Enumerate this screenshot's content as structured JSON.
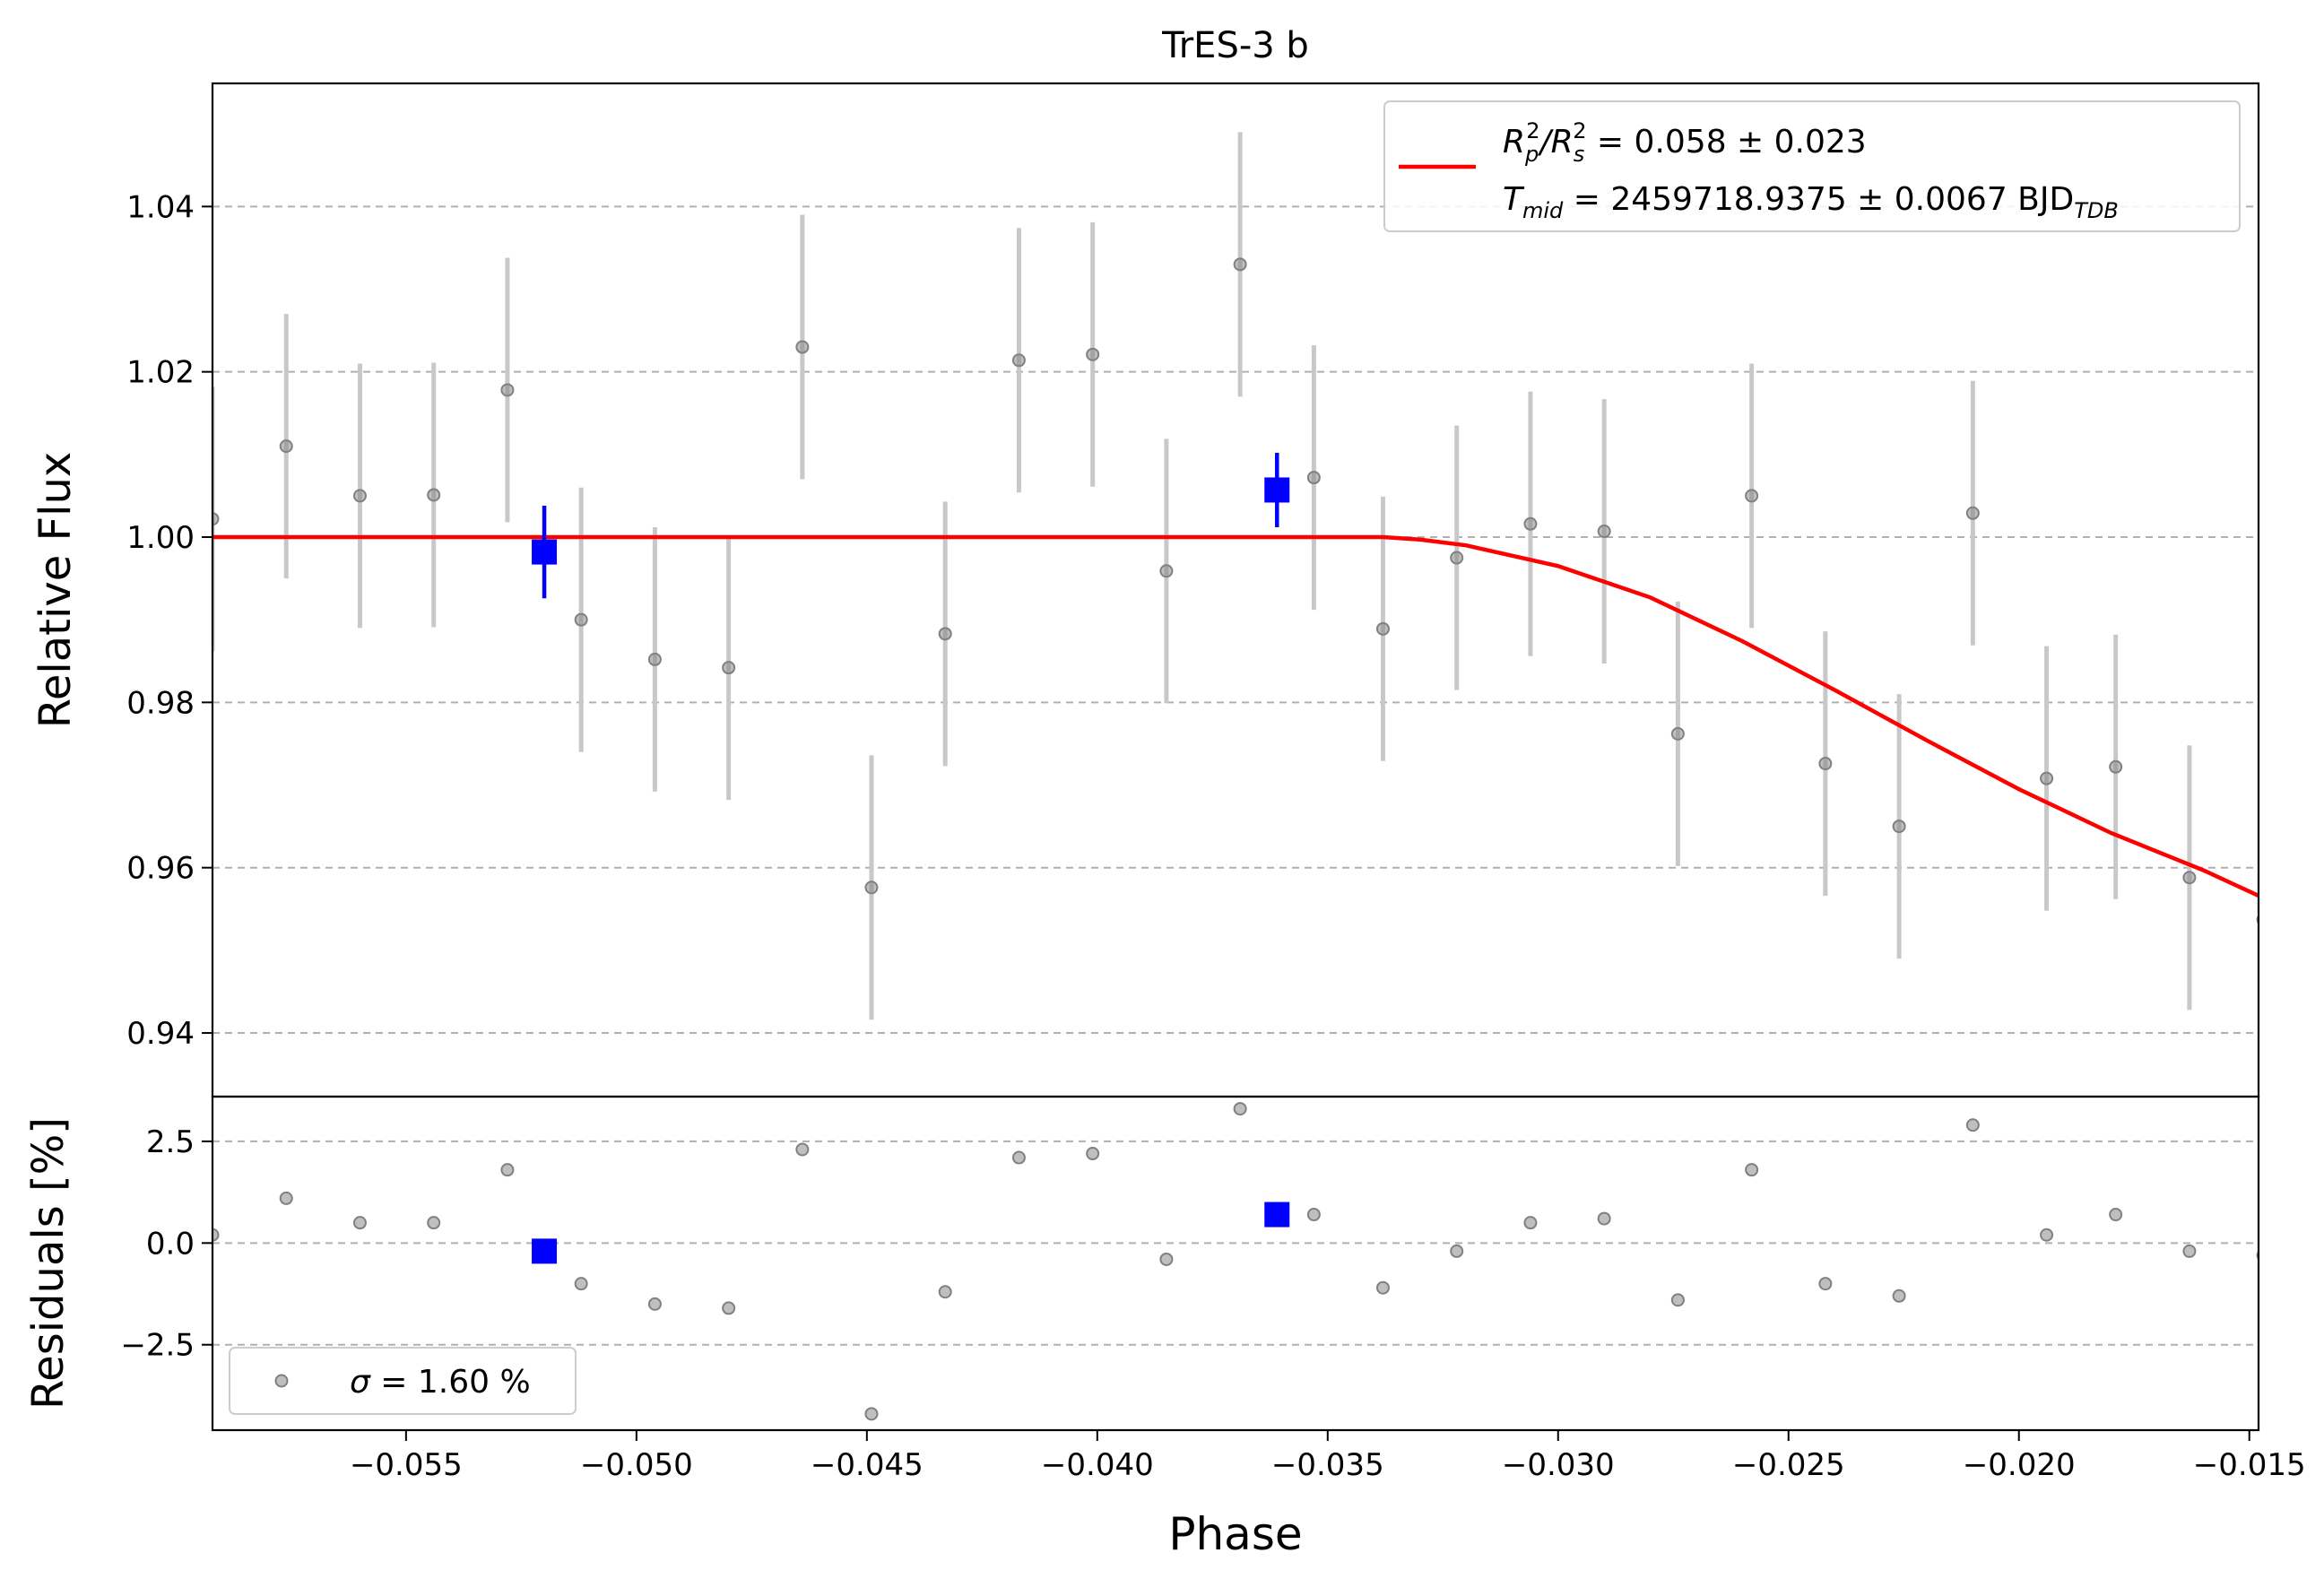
{
  "chart_data": {
    "type": "scatter",
    "title": "TrES-3 b",
    "xlabel": "Phase",
    "xlim": [
      -0.0592,
      -0.0148
    ],
    "x_ticks": [
      -0.055,
      -0.05,
      -0.045,
      -0.04,
      -0.035,
      -0.03,
      -0.025,
      -0.02,
      -0.015
    ],
    "x_tick_labels": [
      "−0.055",
      "−0.050",
      "−0.045",
      "−0.040",
      "−0.035",
      "−0.030",
      "−0.025",
      "−0.020",
      "−0.015"
    ],
    "top_panel": {
      "ylabel": "Relative Flux",
      "ylim": [
        0.9323,
        1.0549
      ],
      "y_ticks": [
        0.94,
        0.96,
        0.98,
        1.0,
        1.02,
        1.04
      ],
      "y_tick_labels": [
        "0.94",
        "0.96",
        "0.98",
        "1.00",
        "1.02",
        "1.04"
      ],
      "grid": "y dashed",
      "legend": {
        "placement": "upper right",
        "line1_a": "R",
        "line1_a_sub": "p",
        "line1_a_sup": "2",
        "line1_b": "/R",
        "line1_b_sub": "s",
        "line1_b_sup": "2",
        "line1_c": " = 0.058 ± 0.023",
        "line2_a": "T",
        "line2_a_sub": "mid",
        "line2_b": " = 2459718.9375 ± 0.0067 BJD",
        "line2_b_sub": "TDB"
      },
      "series": [
        {
          "name": "data",
          "color": "#808080",
          "x": [
            -0.0592,
            -0.0576,
            -0.056,
            -0.0544,
            -0.0528,
            -0.0512,
            -0.0496,
            -0.048,
            -0.0464,
            -0.0449,
            -0.0433,
            -0.0417,
            -0.0401,
            -0.0385,
            -0.0369,
            -0.0353,
            -0.0338,
            -0.0322,
            -0.0306,
            -0.029,
            -0.0274,
            -0.0258,
            -0.0242,
            -0.0226,
            -0.021,
            -0.0194,
            -0.0179,
            -0.0163,
            -0.0147
          ],
          "y": [
            1.0022,
            1.011,
            1.005,
            1.0051,
            1.0178,
            0.99,
            0.9852,
            0.9842,
            1.023,
            0.9576,
            0.9883,
            1.0214,
            1.0221,
            0.9959,
            1.033,
            1.0072,
            0.9889,
            0.9975,
            1.0016,
            1.0007,
            0.9762,
            1.005,
            0.9726,
            0.965,
            1.0029,
            0.9708,
            0.9722,
            0.9588,
            0.9537
          ],
          "yerr": [
            0.016,
            0.016,
            0.016,
            0.016,
            0.016,
            0.016,
            0.016,
            0.016,
            0.016,
            0.016,
            0.016,
            0.016,
            0.016,
            0.016,
            0.016,
            0.016,
            0.016,
            0.016,
            0.016,
            0.016,
            0.016,
            0.016,
            0.016,
            0.016,
            0.016,
            0.016,
            0.016,
            0.016,
            0.016
          ]
        },
        {
          "name": "binned",
          "color": "#0000ff",
          "x": [
            -0.052,
            -0.0361
          ],
          "y": [
            0.9982,
            1.0057
          ],
          "yerr": [
            0.0056,
            0.0045
          ]
        },
        {
          "name": "model",
          "color": "#ff0000",
          "x": [
            -0.0592,
            -0.0338,
            -0.033,
            -0.032,
            -0.03,
            -0.028,
            -0.026,
            -0.024,
            -0.022,
            -0.02,
            -0.018,
            -0.016,
            -0.0148
          ],
          "y": [
            1.0,
            1.0,
            0.9997,
            0.999,
            0.9965,
            0.9927,
            0.9874,
            0.9815,
            0.9754,
            0.9695,
            0.9642,
            0.9597,
            0.9566
          ]
        }
      ]
    },
    "bottom_panel": {
      "ylabel": "Residuals [%]",
      "ylim": [
        -4.6,
        3.6
      ],
      "y_ticks": [
        -2.5,
        0.0,
        2.5
      ],
      "y_tick_labels": [
        "−2.5",
        "0.0",
        "2.5"
      ],
      "grid": "y dashed",
      "legend": {
        "placement": "lower left",
        "symbol": "σ",
        "text": " = 1.60 %"
      },
      "series": [
        {
          "name": "residuals",
          "color": "#808080",
          "x": [
            -0.0592,
            -0.0576,
            -0.056,
            -0.0544,
            -0.0528,
            -0.0512,
            -0.0496,
            -0.048,
            -0.0464,
            -0.0449,
            -0.0433,
            -0.0417,
            -0.0401,
            -0.0385,
            -0.0369,
            -0.0353,
            -0.0338,
            -0.0322,
            -0.0306,
            -0.029,
            -0.0274,
            -0.0258,
            -0.0242,
            -0.0226,
            -0.021,
            -0.0194,
            -0.0179,
            -0.0163,
            -0.0147
          ],
          "y": [
            0.2,
            1.1,
            0.5,
            0.5,
            1.8,
            -1.0,
            -1.5,
            -1.6,
            2.3,
            -4.2,
            -1.2,
            2.1,
            2.2,
            -0.4,
            3.3,
            0.7,
            -1.1,
            -0.2,
            0.5,
            0.6,
            -1.4,
            1.8,
            -1.0,
            -1.3,
            2.9,
            0.2,
            0.7,
            -0.2,
            -0.3
          ]
        },
        {
          "name": "binned-residuals",
          "color": "#0000ff",
          "x": [
            -0.052,
            -0.0361
          ],
          "y": [
            -0.2,
            0.7
          ]
        }
      ]
    }
  }
}
